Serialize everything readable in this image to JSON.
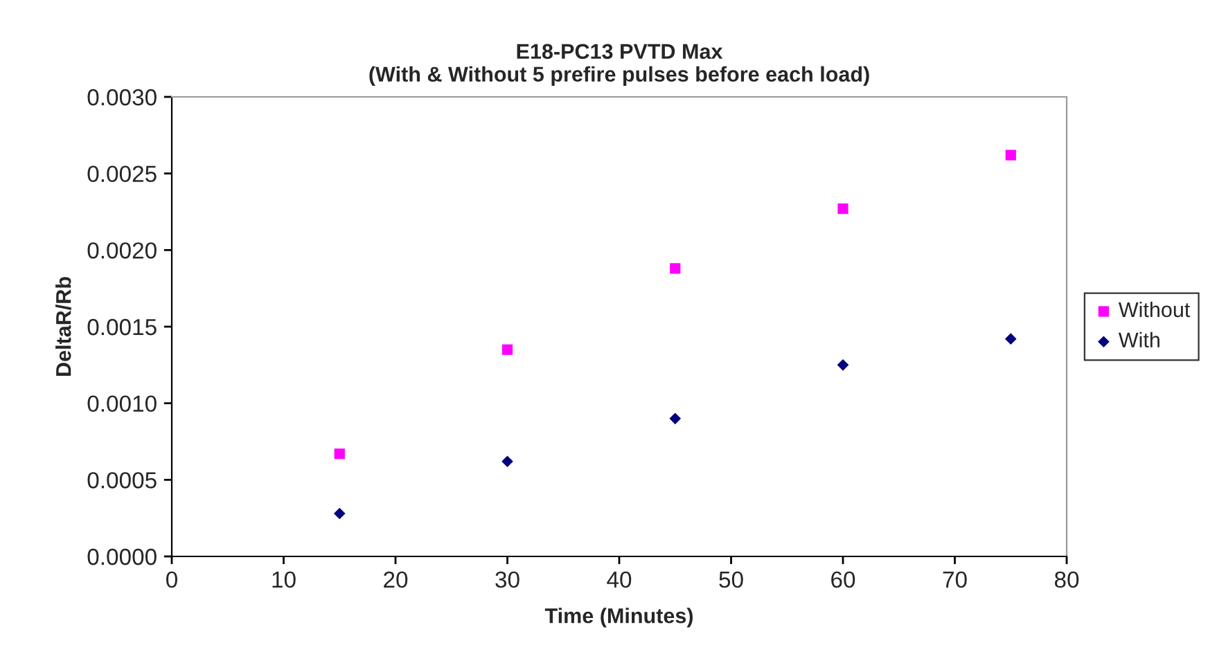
{
  "chart_data": {
    "type": "scatter",
    "title": "E18-PC13 PVTD Max\n(With & Without 5 prefire pulses before each load)",
    "xlabel": "Time (Minutes)",
    "ylabel": "DeltaR/Rb",
    "x": [
      15,
      30,
      45,
      60,
      75
    ],
    "series": [
      {
        "name": "Without",
        "color": "#ff00ff",
        "marker": "square",
        "values": [
          0.00067,
          0.00135,
          0.00188,
          0.00227,
          0.00262
        ]
      },
      {
        "name": "With",
        "color": "#000080",
        "marker": "diamond",
        "values": [
          0.00028,
          0.00062,
          0.0009,
          0.00125,
          0.00142
        ]
      }
    ],
    "xlim": [
      0,
      80
    ],
    "xticks": [
      0,
      10,
      20,
      30,
      40,
      50,
      60,
      70,
      80
    ],
    "ylim": [
      0,
      0.003
    ],
    "yticks": [
      {
        "value": 0,
        "label": "0.0000"
      },
      {
        "value": 0.0005,
        "label": "0.0005"
      },
      {
        "value": 0.001,
        "label": "0.0010"
      },
      {
        "value": 0.0015,
        "label": "0.0015"
      },
      {
        "value": 0.002,
        "label": "0.0020"
      },
      {
        "value": 0.0025,
        "label": "0.0025"
      },
      {
        "value": 0.003,
        "label": "0.0030"
      }
    ],
    "grid": false,
    "legend": "right"
  }
}
